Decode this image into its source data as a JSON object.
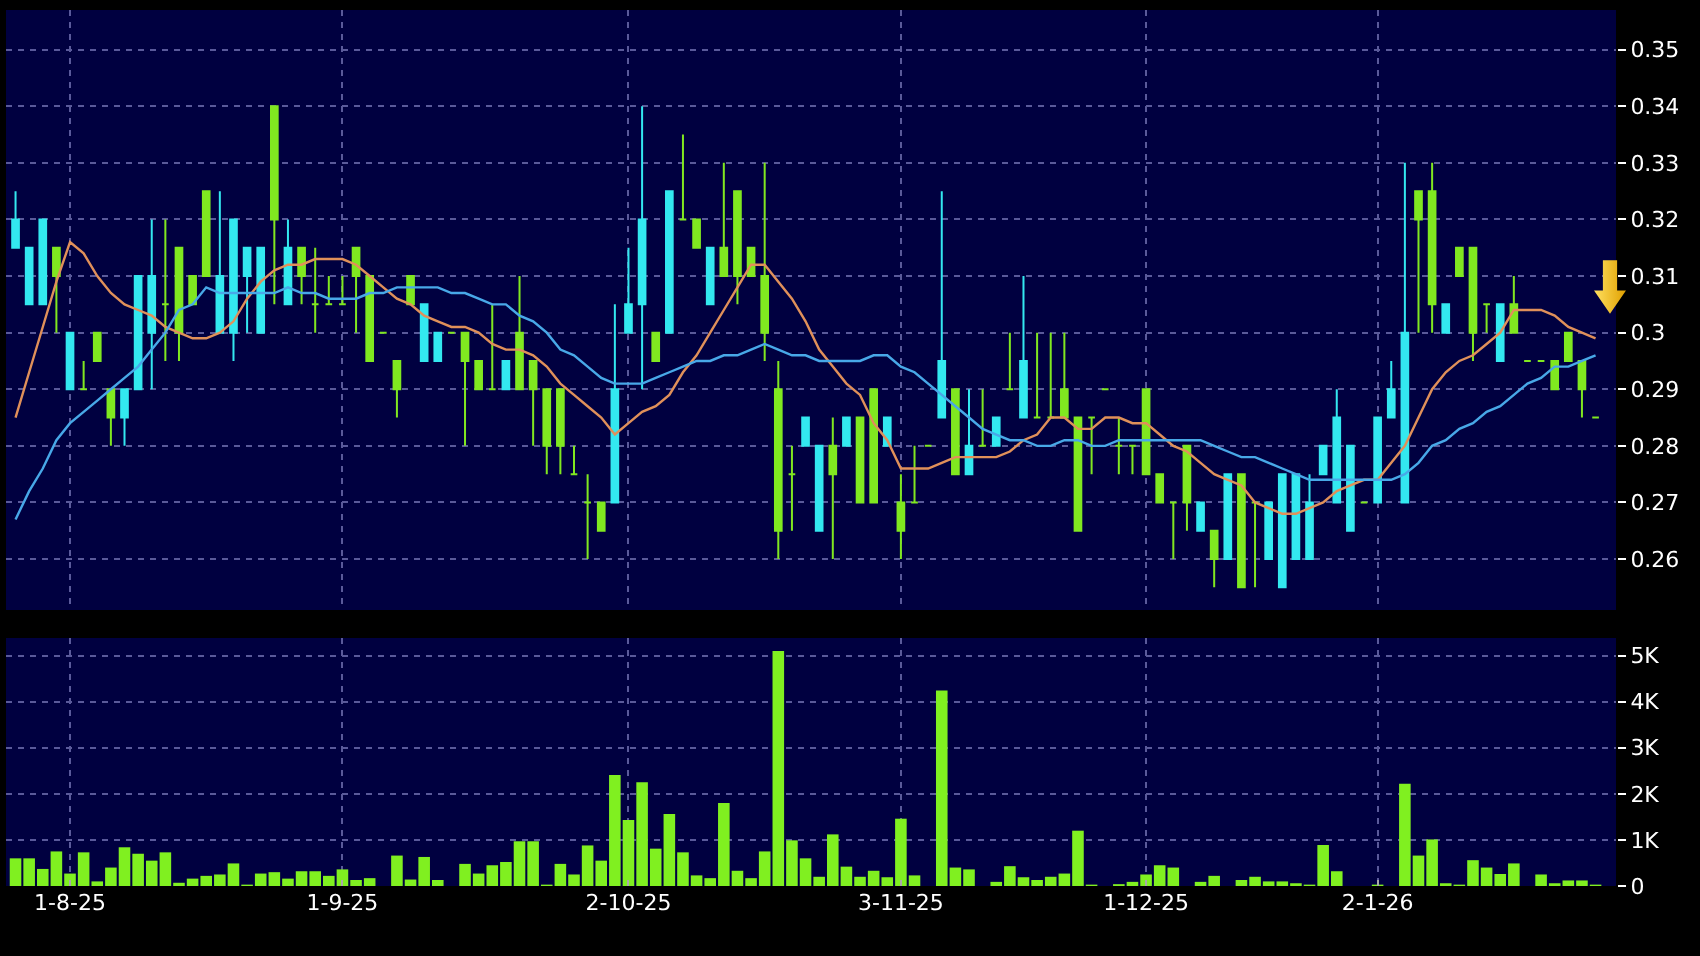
{
  "chart_data": [
    {
      "type": "candlestick",
      "categories": [
        null,
        null,
        null,
        null,
        null,
        null,
        null,
        null,
        null,
        null,
        null,
        null,
        null,
        null,
        null,
        null,
        null,
        null,
        null,
        null,
        null,
        null,
        null,
        null,
        null,
        null,
        null,
        null,
        null,
        null,
        null,
        null,
        null,
        null,
        null,
        null,
        null,
        null,
        null,
        null,
        null,
        null,
        null,
        null,
        null,
        null,
        null,
        null,
        null,
        null,
        null,
        null,
        null,
        null,
        null,
        null,
        null,
        null,
        null,
        null,
        null,
        null,
        null,
        null,
        null,
        null,
        null,
        null,
        null,
        null,
        null,
        null,
        null,
        null,
        null,
        null,
        null,
        null,
        null,
        null,
        null,
        null,
        null,
        null,
        null,
        null,
        null,
        null,
        null,
        null,
        null,
        null,
        null,
        null,
        null,
        null,
        null,
        null,
        null,
        null,
        null,
        null,
        null,
        null,
        null,
        null,
        null,
        null,
        null,
        null,
        null,
        null,
        null,
        null,
        null,
        null,
        null
      ],
      "ohlc": [
        [
          0.315,
          0.325,
          0.315,
          0.32
        ],
        [
          0.305,
          0.315,
          0.305,
          0.315
        ],
        [
          0.305,
          0.32,
          0.305,
          0.32
        ],
        [
          0.315,
          0.315,
          0.3,
          0.31
        ],
        [
          0.29,
          0.3,
          0.29,
          0.3
        ],
        [
          0.29,
          0.295,
          0.29,
          0.29
        ],
        [
          0.3,
          0.3,
          0.295,
          0.295
        ],
        [
          0.29,
          0.29,
          0.28,
          0.285
        ],
        [
          0.285,
          0.29,
          0.28,
          0.29
        ],
        [
          0.29,
          0.31,
          0.29,
          0.31
        ],
        [
          0.3,
          0.32,
          0.29,
          0.31
        ],
        [
          0.305,
          0.32,
          0.295,
          0.305
        ],
        [
          0.315,
          0.315,
          0.295,
          0.3
        ],
        [
          0.31,
          0.31,
          0.305,
          0.305
        ],
        [
          0.325,
          0.325,
          0.31,
          0.31
        ],
        [
          0.3,
          0.325,
          0.3,
          0.31
        ],
        [
          0.3,
          0.32,
          0.295,
          0.32
        ],
        [
          0.31,
          0.315,
          0.3,
          0.315
        ],
        [
          0.3,
          0.315,
          0.3,
          0.315
        ],
        [
          0.34,
          0.34,
          0.305,
          0.32
        ],
        [
          0.305,
          0.32,
          0.305,
          0.315
        ],
        [
          0.315,
          0.315,
          0.305,
          0.31
        ],
        [
          0.305,
          0.315,
          0.3,
          0.305
        ],
        [
          0.305,
          0.31,
          0.305,
          0.305
        ],
        [
          0.305,
          0.31,
          0.305,
          0.305
        ],
        [
          0.315,
          0.315,
          0.3,
          0.31
        ],
        [
          0.31,
          0.31,
          0.295,
          0.295
        ],
        [
          0.3,
          0.3,
          0.3,
          0.3
        ],
        [
          0.295,
          0.295,
          0.285,
          0.29
        ],
        [
          0.31,
          0.31,
          0.305,
          0.305
        ],
        [
          0.295,
          0.305,
          0.295,
          0.305
        ],
        [
          0.295,
          0.3,
          0.295,
          0.3
        ],
        [
          0.3,
          0.3,
          0.3,
          0.3
        ],
        [
          0.3,
          0.3,
          0.28,
          0.295
        ],
        [
          0.295,
          0.295,
          0.29,
          0.29
        ],
        [
          0.29,
          0.305,
          0.29,
          0.29
        ],
        [
          0.29,
          0.295,
          0.29,
          0.295
        ],
        [
          0.3,
          0.31,
          0.29,
          0.29
        ],
        [
          0.295,
          0.295,
          0.28,
          0.29
        ],
        [
          0.29,
          0.29,
          0.275,
          0.28
        ],
        [
          0.29,
          0.29,
          0.275,
          0.28
        ],
        [
          0.275,
          0.28,
          0.275,
          0.275
        ],
        [
          0.27,
          0.275,
          0.26,
          0.27
        ],
        [
          0.27,
          0.27,
          0.265,
          0.265
        ],
        [
          0.27,
          0.305,
          0.27,
          0.29
        ],
        [
          0.3,
          0.315,
          0.3,
          0.305
        ],
        [
          0.305,
          0.34,
          0.29,
          0.32
        ],
        [
          0.3,
          0.3,
          0.295,
          0.295
        ],
        [
          0.3,
          0.325,
          0.3,
          0.325
        ],
        [
          0.32,
          0.335,
          0.32,
          0.32
        ],
        [
          0.32,
          0.32,
          0.315,
          0.315
        ],
        [
          0.305,
          0.315,
          0.305,
          0.315
        ],
        [
          0.315,
          0.33,
          0.31,
          0.31
        ],
        [
          0.325,
          0.325,
          0.305,
          0.31
        ],
        [
          0.315,
          0.315,
          0.31,
          0.31
        ],
        [
          0.31,
          0.33,
          0.295,
          0.3
        ],
        [
          0.29,
          0.295,
          0.26,
          0.265
        ],
        [
          0.275,
          0.28,
          0.265,
          0.275
        ],
        [
          0.28,
          0.285,
          0.28,
          0.285
        ],
        [
          0.265,
          0.28,
          0.265,
          0.28
        ],
        [
          0.28,
          0.285,
          0.26,
          0.275
        ],
        [
          0.28,
          0.285,
          0.28,
          0.285
        ],
        [
          0.285,
          0.285,
          0.27,
          0.27
        ],
        [
          0.29,
          0.29,
          0.27,
          0.27
        ],
        [
          0.28,
          0.285,
          0.28,
          0.285
        ],
        [
          0.27,
          0.275,
          0.26,
          0.265
        ],
        [
          0.27,
          0.28,
          0.27,
          0.27
        ],
        [
          0.28,
          0.28,
          0.28,
          0.28
        ],
        [
          0.285,
          0.325,
          0.285,
          0.295
        ],
        [
          0.29,
          0.29,
          0.275,
          0.275
        ],
        [
          0.275,
          0.29,
          0.275,
          0.28
        ],
        [
          0.28,
          0.29,
          0.28,
          0.28
        ],
        [
          0.28,
          0.285,
          0.28,
          0.285
        ],
        [
          0.29,
          0.3,
          0.29,
          0.29
        ],
        [
          0.285,
          0.31,
          0.285,
          0.295
        ],
        [
          0.285,
          0.3,
          0.285,
          0.285
        ],
        [
          0.285,
          0.3,
          0.285,
          0.285
        ],
        [
          0.29,
          0.3,
          0.285,
          0.285
        ],
        [
          0.285,
          0.285,
          0.265,
          0.265
        ],
        [
          0.285,
          0.285,
          0.275,
          0.285
        ],
        [
          0.29,
          0.29,
          0.29,
          0.29
        ],
        [
          0.28,
          0.285,
          0.275,
          0.28
        ],
        [
          0.28,
          0.28,
          0.275,
          0.28
        ],
        [
          0.29,
          0.29,
          0.275,
          0.275
        ],
        [
          0.275,
          0.275,
          0.27,
          0.27
        ],
        [
          0.27,
          0.27,
          0.26,
          0.27
        ],
        [
          0.28,
          0.28,
          0.265,
          0.27
        ],
        [
          0.265,
          0.27,
          0.265,
          0.27
        ],
        [
          0.265,
          0.265,
          0.255,
          0.26
        ],
        [
          0.26,
          0.275,
          0.26,
          0.275
        ],
        [
          0.275,
          0.275,
          0.255,
          0.255
        ],
        [
          0.27,
          0.27,
          0.255,
          0.27
        ],
        [
          0.26,
          0.27,
          0.26,
          0.27
        ],
        [
          0.255,
          0.275,
          0.255,
          0.275
        ],
        [
          0.26,
          0.275,
          0.26,
          0.275
        ],
        [
          0.26,
          0.275,
          0.26,
          0.27
        ],
        [
          0.275,
          0.28,
          0.275,
          0.28
        ],
        [
          0.27,
          0.29,
          0.27,
          0.285
        ],
        [
          0.265,
          0.28,
          0.265,
          0.28
        ],
        [
          0.27,
          0.27,
          0.27,
          0.27
        ],
        [
          0.27,
          0.285,
          0.27,
          0.285
        ],
        [
          0.285,
          0.295,
          0.285,
          0.29
        ],
        [
          0.27,
          0.33,
          0.27,
          0.3
        ],
        [
          0.325,
          0.325,
          0.3,
          0.32
        ],
        [
          0.325,
          0.33,
          0.3,
          0.305
        ],
        [
          0.3,
          0.305,
          0.3,
          0.305
        ],
        [
          0.315,
          0.315,
          0.31,
          0.31
        ],
        [
          0.315,
          0.315,
          0.295,
          0.3
        ],
        [
          0.305,
          0.305,
          0.3,
          0.305
        ],
        [
          0.295,
          0.305,
          0.295,
          0.305
        ],
        [
          0.305,
          0.31,
          0.3,
          0.3
        ],
        [
          0.295,
          0.295,
          0.295,
          0.295
        ],
        [
          0.295,
          0.295,
          0.295,
          0.295
        ],
        [
          0.295,
          0.295,
          0.29,
          0.29
        ],
        [
          0.3,
          0.3,
          0.295,
          0.295
        ],
        [
          0.295,
          0.295,
          0.285,
          0.29
        ],
        [
          0.285,
          0.285,
          0.285,
          0.285
        ]
      ],
      "colors": [
        "#33e8f0",
        "#33e8f0",
        "#33e8f0",
        "#80e820",
        "#33e8f0",
        "#80e820",
        "#80e820",
        "#80e820",
        "#33e8f0",
        "#33e8f0",
        "#33e8f0",
        "#80e820",
        "#80e820",
        "#80e820",
        "#80e820",
        "#33e8f0",
        "#33e8f0",
        "#33e8f0",
        "#33e8f0",
        "#80e820",
        "#33e8f0",
        "#80e820",
        "#80e820",
        "#80e820",
        "#80e820",
        "#80e820",
        "#80e820",
        "#80e820",
        "#80e820",
        "#80e820",
        "#33e8f0",
        "#33e8f0",
        "#80e820",
        "#80e820",
        "#80e820",
        "#80e820",
        "#33e8f0",
        "#80e820",
        "#80e820",
        "#80e820",
        "#80e820",
        "#80e820",
        "#80e820",
        "#80e820",
        "#33e8f0",
        "#33e8f0",
        "#33e8f0",
        "#80e820",
        "#33e8f0",
        "#80e820",
        "#80e820",
        "#33e8f0",
        "#80e820",
        "#80e820",
        "#80e820",
        "#80e820",
        "#80e820",
        "#80e820",
        "#33e8f0",
        "#33e8f0",
        "#80e820",
        "#33e8f0",
        "#80e820",
        "#80e820",
        "#33e8f0",
        "#80e820",
        "#80e820",
        "#80e820",
        "#33e8f0",
        "#80e820",
        "#33e8f0",
        "#80e820",
        "#33e8f0",
        "#80e820",
        "#33e8f0",
        "#80e820",
        "#80e820",
        "#80e820",
        "#80e820",
        "#80e820",
        "#80e820",
        "#80e820",
        "#80e820",
        "#80e820",
        "#80e820",
        "#80e820",
        "#80e820",
        "#33e8f0",
        "#80e820",
        "#33e8f0",
        "#80e820",
        "#80e820",
        "#33e8f0",
        "#33e8f0",
        "#33e8f0",
        "#33e8f0",
        "#33e8f0",
        "#33e8f0",
        "#33e8f0",
        "#80e820",
        "#33e8f0",
        "#33e8f0",
        "#33e8f0",
        "#80e820",
        "#80e820",
        "#33e8f0",
        "#80e820",
        "#80e820",
        "#80e820",
        "#33e8f0",
        "#80e820",
        "#80e820",
        "#80e820",
        "#80e820",
        "#80e820",
        "#80e820",
        "#80e820"
      ],
      "series": [
        {
          "type": "line",
          "color": "#e0905a",
          "values": [
            0.285,
            0.293,
            0.301,
            0.309,
            0.316,
            0.314,
            0.31,
            0.307,
            0.305,
            0.304,
            0.303,
            0.301,
            0.3,
            0.299,
            0.299,
            0.3,
            0.302,
            0.306,
            0.309,
            0.311,
            0.312,
            0.312,
            0.313,
            0.313,
            0.313,
            0.312,
            0.31,
            0.308,
            0.306,
            0.305,
            0.303,
            0.302,
            0.301,
            0.301,
            0.3,
            0.298,
            0.297,
            0.297,
            0.296,
            0.294,
            0.291,
            0.289,
            0.287,
            0.285,
            0.282,
            0.284,
            0.286,
            0.287,
            0.289,
            0.293,
            0.296,
            0.3,
            0.304,
            0.308,
            0.312,
            0.312,
            0.309,
            0.306,
            0.302,
            0.297,
            0.294,
            0.291,
            0.289,
            0.284,
            0.281,
            0.276,
            0.276,
            0.276,
            0.277,
            0.278,
            0.278,
            0.278,
            0.278,
            0.279,
            0.281,
            0.282,
            0.285,
            0.285,
            0.283,
            0.283,
            0.285,
            0.285,
            0.284,
            0.284,
            0.282,
            0.28,
            0.279,
            0.277,
            0.275,
            0.274,
            0.273,
            0.27,
            0.269,
            0.268,
            0.268,
            0.269,
            0.27,
            0.272,
            0.273,
            0.274,
            0.274,
            0.277,
            0.28,
            0.285,
            0.29,
            0.293,
            0.295,
            0.296,
            0.298,
            0.3,
            0.304,
            0.304,
            0.304,
            0.303,
            0.301,
            0.3,
            0.299
          ]
        },
        {
          "type": "line",
          "color": "#48a8e8",
          "values": [
            0.267,
            0.272,
            0.276,
            0.281,
            0.284,
            0.286,
            0.288,
            0.29,
            0.292,
            0.294,
            0.297,
            0.3,
            0.304,
            0.305,
            0.308,
            0.307,
            0.307,
            0.307,
            0.307,
            0.307,
            0.308,
            0.307,
            0.307,
            0.306,
            0.306,
            0.306,
            0.307,
            0.307,
            0.308,
            0.308,
            0.308,
            0.308,
            0.307,
            0.307,
            0.306,
            0.305,
            0.305,
            0.303,
            0.302,
            0.3,
            0.297,
            0.296,
            0.294,
            0.292,
            0.291,
            0.291,
            0.291,
            0.292,
            0.293,
            0.294,
            0.295,
            0.295,
            0.296,
            0.296,
            0.297,
            0.298,
            0.297,
            0.296,
            0.296,
            0.295,
            0.295,
            0.295,
            0.295,
            0.296,
            0.296,
            0.294,
            0.293,
            0.291,
            0.289,
            0.287,
            0.285,
            0.283,
            0.282,
            0.281,
            0.281,
            0.28,
            0.28,
            0.281,
            0.281,
            0.28,
            0.28,
            0.281,
            0.281,
            0.281,
            0.281,
            0.281,
            0.281,
            0.281,
            0.28,
            0.279,
            0.278,
            0.278,
            0.277,
            0.276,
            0.275,
            0.274,
            0.274,
            0.274,
            0.274,
            0.274,
            0.274,
            0.274,
            0.275,
            0.277,
            0.28,
            0.281,
            0.283,
            0.284,
            0.286,
            0.287,
            0.289,
            0.291,
            0.292,
            0.294,
            0.294,
            0.295,
            0.296
          ]
        }
      ],
      "ylim": [
        0.251,
        0.357
      ],
      "yticks": [
        0.26,
        0.27,
        0.28,
        0.29,
        0.3,
        0.31,
        0.32,
        0.33,
        0.34,
        0.35
      ],
      "grid": true,
      "tick_labels": "y"
    },
    {
      "type": "bar",
      "categories": [
        null,
        null,
        null,
        null,
        "1-8-25",
        null,
        null,
        null,
        null,
        null,
        null,
        null,
        null,
        null,
        null,
        null,
        null,
        null,
        null,
        null,
        null,
        null,
        null,
        null,
        "1-9-25",
        null,
        null,
        null,
        null,
        null,
        null,
        null,
        null,
        null,
        null,
        null,
        null,
        null,
        null,
        null,
        null,
        null,
        null,
        null,
        null,
        "2-10-25",
        null,
        null,
        null,
        null,
        null,
        null,
        null,
        null,
        null,
        null,
        null,
        null,
        null,
        null,
        null,
        null,
        null,
        null,
        null,
        "3-11-25",
        null,
        null,
        null,
        null,
        null,
        null,
        null,
        null,
        null,
        null,
        null,
        null,
        null,
        null,
        null,
        null,
        null,
        "1-12-25",
        null,
        null,
        null,
        null,
        null,
        null,
        null,
        null,
        null,
        null,
        null,
        null,
        null,
        null,
        null,
        null,
        "2-1-26",
        null,
        null,
        null,
        null,
        null,
        null,
        null,
        null,
        null,
        null,
        null,
        null,
        null,
        null,
        null,
        null
      ],
      "color": "#80f020",
      "values": [
        600,
        600,
        370,
        750,
        270,
        730,
        100,
        400,
        840,
        700,
        550,
        730,
        70,
        160,
        220,
        250,
        490,
        30,
        270,
        300,
        160,
        320,
        320,
        220,
        360,
        130,
        170,
        0,
        660,
        140,
        630,
        130,
        0,
        480,
        270,
        450,
        520,
        970,
        970,
        30,
        480,
        250,
        880,
        550,
        2410,
        1430,
        2250,
        810,
        1560,
        730,
        230,
        170,
        1800,
        330,
        170,
        750,
        5100,
        990,
        600,
        200,
        1120,
        420,
        200,
        330,
        190,
        1460,
        230,
        0,
        4240,
        400,
        360,
        0,
        90,
        430,
        190,
        130,
        200,
        270,
        1200,
        30,
        0,
        40,
        90,
        250,
        450,
        400,
        0,
        90,
        220,
        0,
        130,
        200,
        100,
        100,
        60,
        30,
        890,
        320,
        0,
        0,
        30,
        0,
        2220,
        660,
        1010,
        60,
        30,
        560,
        400,
        260,
        490,
        0,
        250,
        60,
        120,
        120,
        30
      ],
      "ylim": [
        0,
        5380
      ],
      "yticks": [
        0,
        {
          "value": 1000,
          "label": "1K"
        },
        {
          "value": 2000,
          "label": "2K"
        },
        {
          "value": 3000,
          "label": "3K"
        },
        {
          "value": 4000,
          "label": "4K"
        },
        {
          "value": 5000,
          "label": "5K"
        }
      ],
      "grid": true
    }
  ]
}
